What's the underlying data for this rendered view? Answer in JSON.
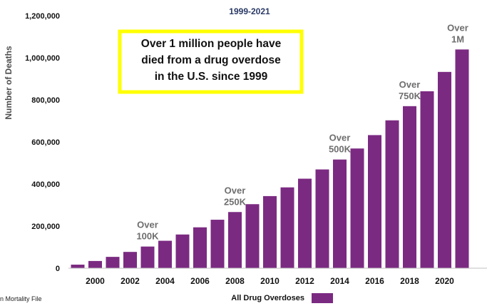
{
  "chart_data": {
    "type": "bar",
    "subtitle": "1999-2021",
    "ylabel": "Number of Deaths",
    "ylim": [
      0,
      1200000
    ],
    "y_ticks": [
      0,
      200000,
      400000,
      600000,
      800000,
      1000000,
      1200000
    ],
    "y_tick_labels": [
      "0",
      "200,000",
      "400,000",
      "600,000",
      "800,000",
      "1,000,000",
      "1,200,000"
    ],
    "x": [
      1999,
      2000,
      2001,
      2002,
      2003,
      2004,
      2005,
      2006,
      2007,
      2008,
      2009,
      2010,
      2011,
      2012,
      2013,
      2014,
      2015,
      2016,
      2017,
      2018,
      2019,
      2020,
      2021
    ],
    "x_tick_labels": [
      "2000",
      "2002",
      "2004",
      "2006",
      "2008",
      "2010",
      "2012",
      "2014",
      "2016",
      "2018",
      "2020"
    ],
    "series": [
      {
        "name": "All Drug Overdoses",
        "color": "#7b2a82",
        "values": [
          16849,
          34264,
          53819,
          77390,
          102908,
          130332,
          160158,
          194226,
          230353,
          266930,
          304234,
          342652,
          384051,
          425349,
          469331,
          516472,
          568876,
          632508,
          702691,
          770058,
          840863,
          932823,
          1039496
        ]
      }
    ],
    "annotations": [
      {
        "year": 2003,
        "lines": [
          "Over",
          "100K"
        ]
      },
      {
        "year": 2008,
        "lines": [
          "Over",
          "250K"
        ]
      },
      {
        "year": 2014,
        "lines": [
          "Over",
          "500K"
        ]
      },
      {
        "year": 2018,
        "lines": [
          "Over",
          "750K"
        ]
      },
      {
        "year": 2021,
        "lines": [
          "Over",
          "1M"
        ]
      }
    ],
    "callout": {
      "lines": [
        "Over 1 million people have",
        "died from a drug overdose",
        "in the U.S. since 1999"
      ],
      "border_color": "#ffff00"
    },
    "legend": {
      "label": "All Drug Overdoses",
      "position": "bottom"
    },
    "source_text": "n Mortality File",
    "grid": false
  }
}
